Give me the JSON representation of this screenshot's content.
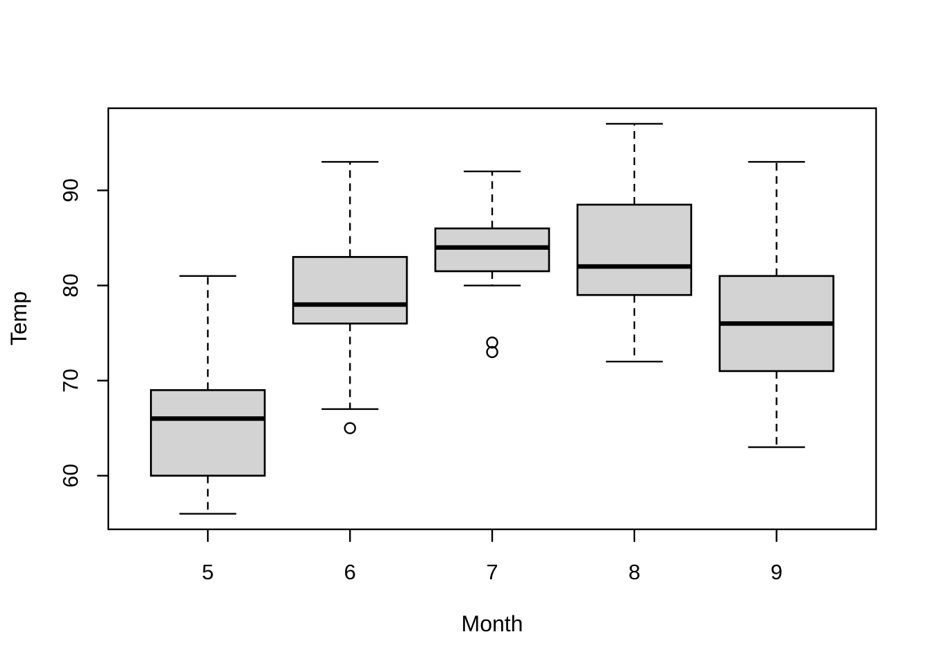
{
  "figure": {
    "background_color": "#ffffff"
  },
  "chart_data": {
    "type": "boxplot",
    "title": "",
    "xlabel": "Month",
    "ylabel": "Temp",
    "categories": [
      "5",
      "6",
      "7",
      "8",
      "9"
    ],
    "y_ticks": [
      60,
      70,
      80,
      90
    ],
    "xlim": [
      0.3,
      5.7
    ],
    "ylim": [
      54.36,
      98.64
    ],
    "grid": false,
    "legend": "none",
    "orientation": "vertical",
    "box_width_units": 0.8,
    "cap_width_units": 0.4,
    "colors": {
      "box_fill": "#d3d3d3",
      "line": "#000000",
      "background": "#ffffff"
    },
    "series": [
      {
        "category": "5",
        "x": 1,
        "lower_whisker": 56,
        "q1": 60,
        "median": 66,
        "q3": 69,
        "upper_whisker": 81,
        "outliers": []
      },
      {
        "category": "6",
        "x": 2,
        "lower_whisker": 67,
        "q1": 76,
        "median": 78,
        "q3": 83,
        "upper_whisker": 93,
        "outliers": [
          65
        ]
      },
      {
        "category": "7",
        "x": 3,
        "lower_whisker": 80,
        "q1": 81.5,
        "median": 84,
        "q3": 86,
        "upper_whisker": 92,
        "outliers": [
          73,
          74
        ]
      },
      {
        "category": "8",
        "x": 4,
        "lower_whisker": 72,
        "q1": 79,
        "median": 82,
        "q3": 88.5,
        "upper_whisker": 97,
        "outliers": []
      },
      {
        "category": "9",
        "x": 5,
        "lower_whisker": 63,
        "q1": 71,
        "median": 76,
        "q3": 81,
        "upper_whisker": 93,
        "outliers": []
      }
    ]
  }
}
